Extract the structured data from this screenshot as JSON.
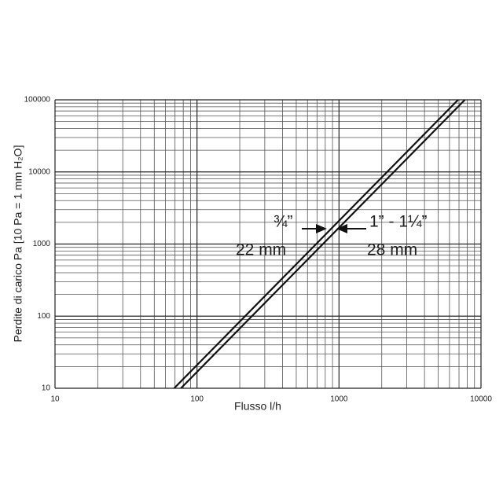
{
  "chart_data": {
    "type": "line",
    "xlabel": "Flusso l/h",
    "ylabel": "Perdite di carico  Pa [10 Pa = 1 mm H₂O]",
    "xscale": "log",
    "yscale": "log",
    "grid": true,
    "xlim": [
      10,
      10000
    ],
    "ylim": [
      10,
      100000
    ],
    "xticks": [
      10,
      100,
      1000,
      10000
    ],
    "yticks": [
      10,
      100,
      1000,
      10000,
      100000
    ],
    "xminor": [
      20,
      30,
      40,
      50,
      60,
      70,
      80,
      90,
      200,
      300,
      400,
      500,
      600,
      700,
      800,
      900,
      2000,
      3000,
      4000,
      5000,
      6000,
      7000,
      8000,
      9000
    ],
    "yminor": [
      20,
      30,
      40,
      50,
      60,
      70,
      80,
      90,
      200,
      300,
      400,
      500,
      600,
      700,
      800,
      900,
      2000,
      3000,
      4000,
      5000,
      6000,
      7000,
      8000,
      9000,
      20000,
      30000,
      40000,
      50000,
      60000,
      70000,
      80000,
      90000
    ],
    "series": [
      {
        "name": "22 mm",
        "color": "#111111",
        "x": [
          69,
          6900
        ],
        "values": [
          10,
          100000
        ]
      },
      {
        "name": "28 mm",
        "color": "#111111",
        "x": [
          77,
          7700
        ],
        "values": [
          10,
          100000
        ]
      }
    ],
    "annotations": [
      "¾”",
      "1” - 1¼”"
    ]
  }
}
